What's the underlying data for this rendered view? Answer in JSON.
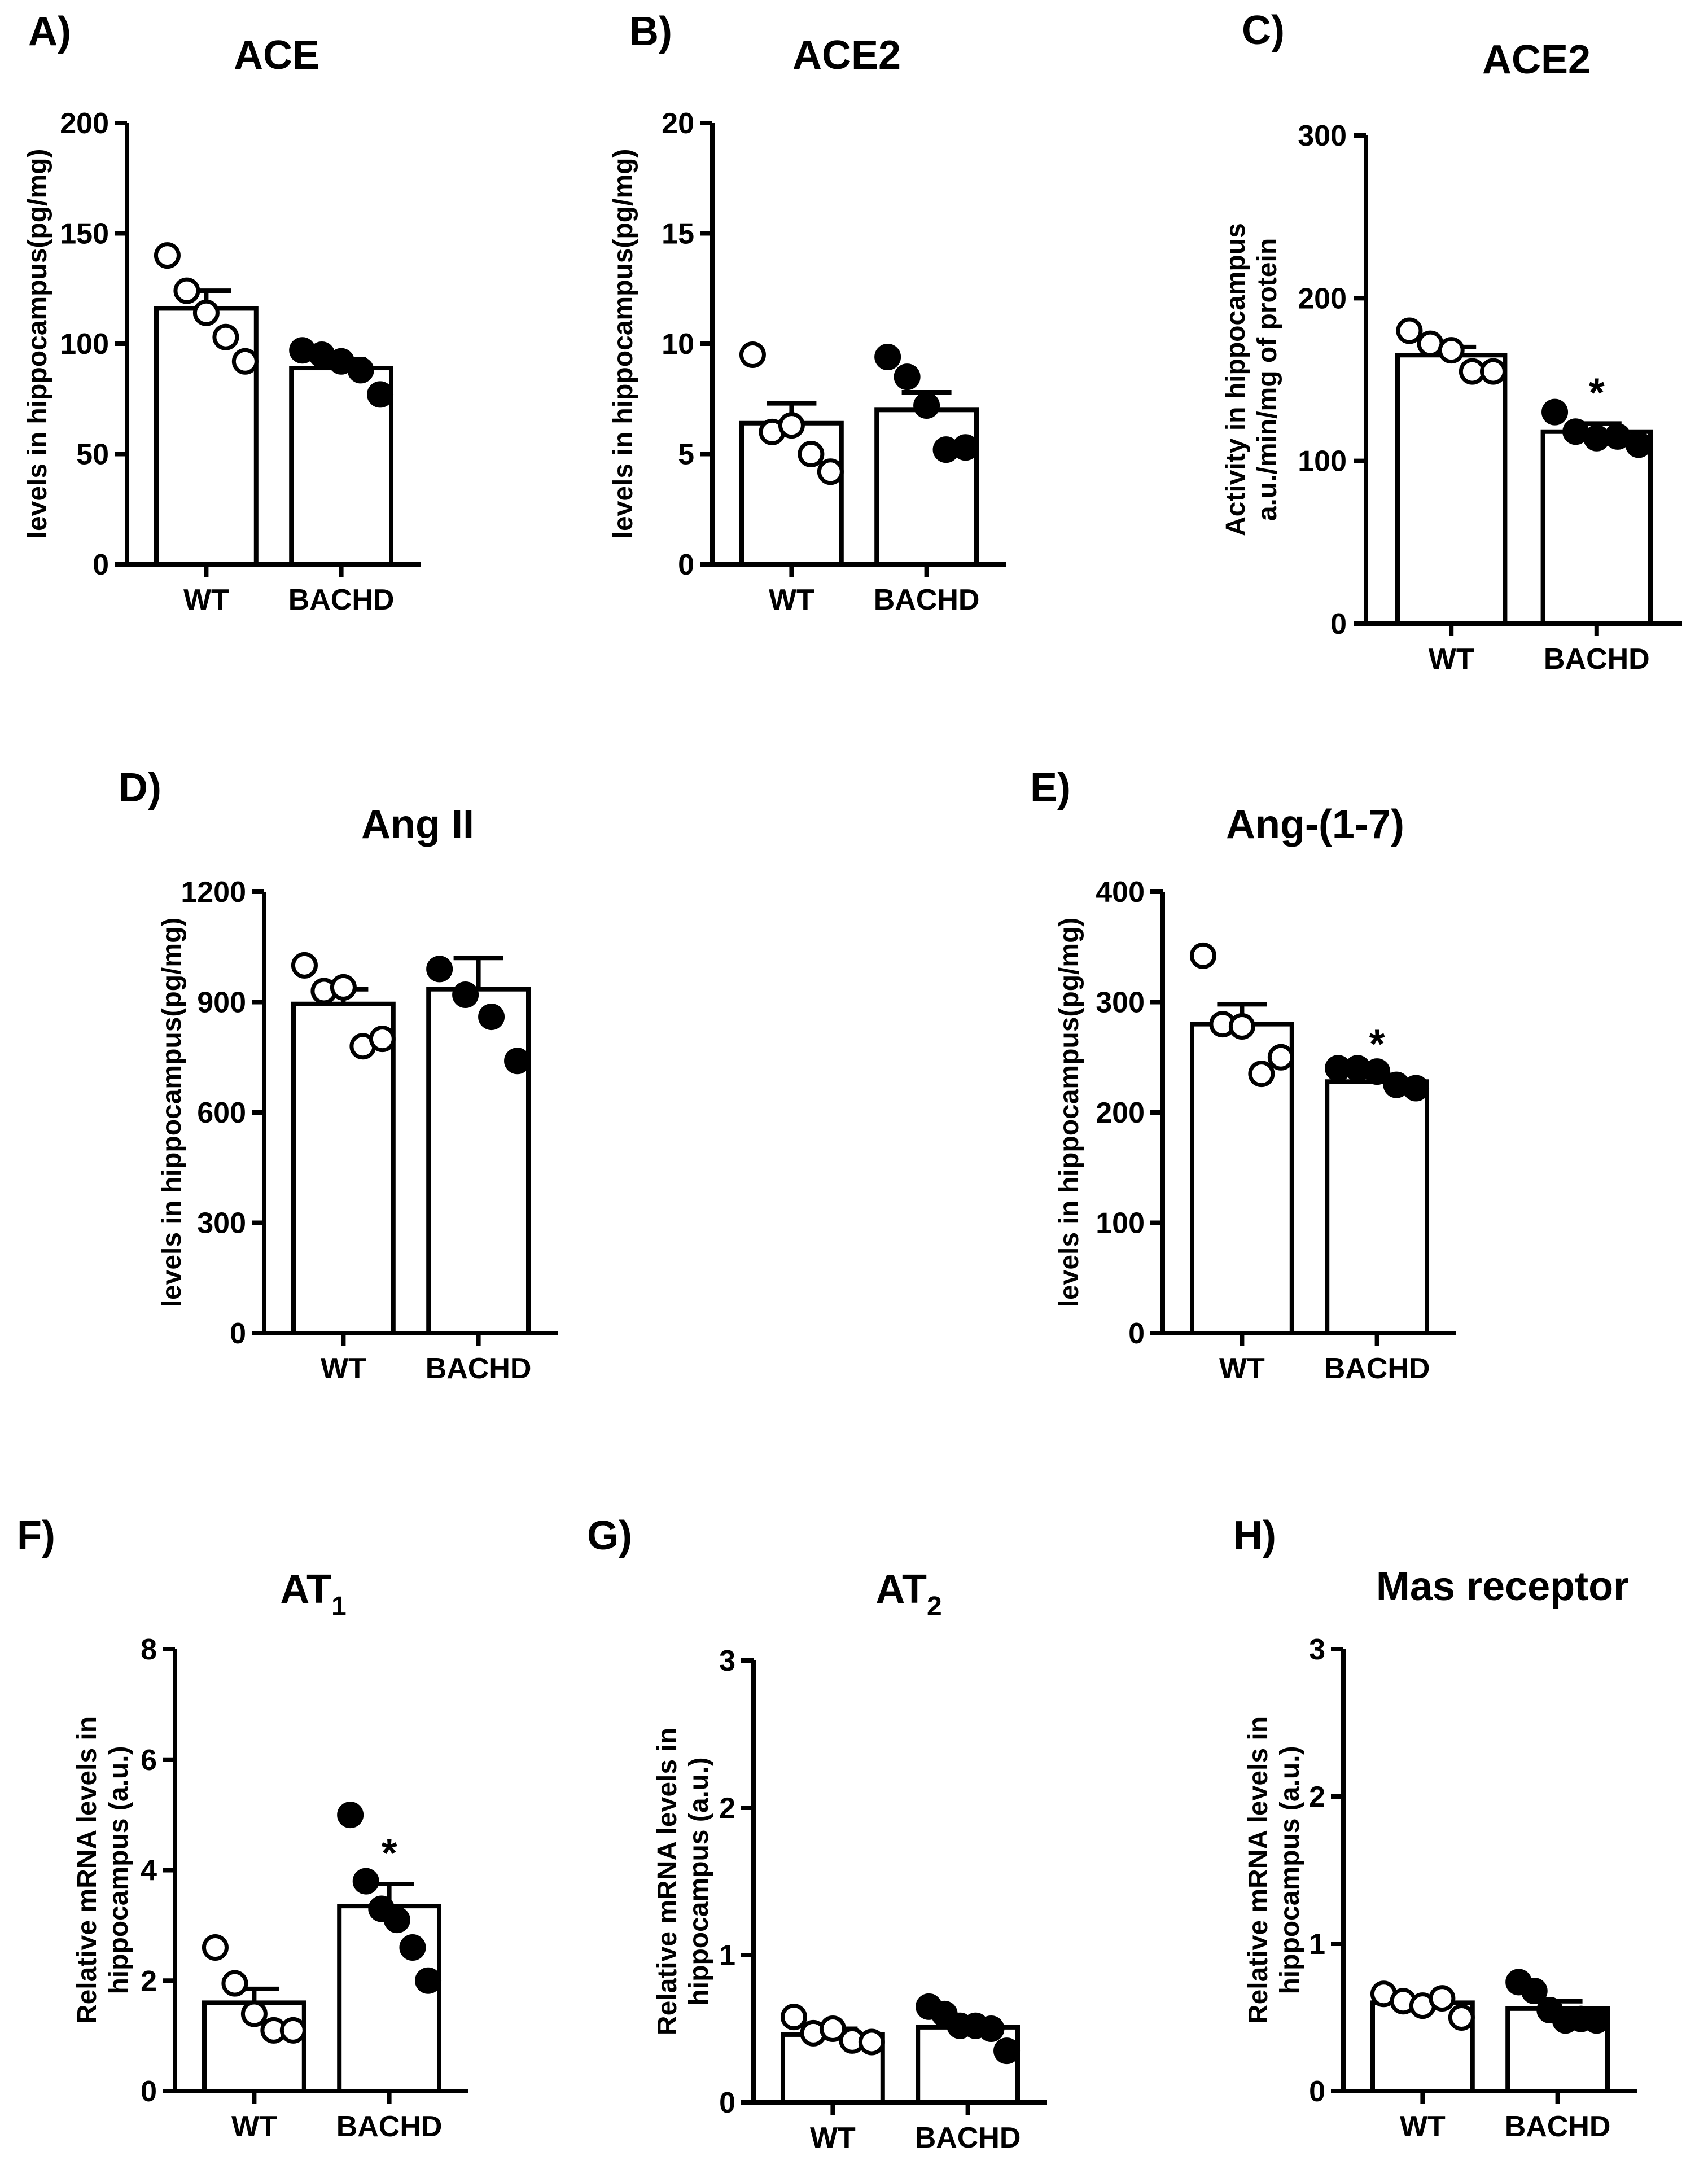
{
  "figure": {
    "background": "#ffffff",
    "ink": "#000000"
  },
  "chart_data": [
    {
      "panel": "A)",
      "type": "bar",
      "title": "ACE",
      "ylabel": [
        "levels in hippocampus(pg/mg)"
      ],
      "categories": [
        "WT",
        "BACHD"
      ],
      "ylim": [
        0,
        200
      ],
      "yticks": [
        0,
        50,
        100,
        150,
        200
      ],
      "means": [
        116,
        89
      ],
      "sem": [
        8,
        4
      ],
      "points": [
        [
          140,
          124,
          114,
          103,
          92
        ],
        [
          97,
          95,
          92,
          88,
          77
        ]
      ],
      "marker_fill": [
        "#ffffff",
        "#000000"
      ],
      "significance": [
        "",
        ""
      ]
    },
    {
      "panel": "B)",
      "type": "bar",
      "title": "ACE2",
      "ylabel": [
        "levels in hippocampus(pg/mg)"
      ],
      "categories": [
        "WT",
        "BACHD"
      ],
      "ylim": [
        0,
        20
      ],
      "yticks": [
        0,
        5,
        10,
        15,
        20
      ],
      "means": [
        6.4,
        7.0
      ],
      "sem": [
        0.9,
        0.8
      ],
      "points": [
        [
          9.5,
          6.0,
          6.3,
          5.0,
          4.2
        ],
        [
          9.4,
          8.5,
          7.2,
          5.2,
          5.3
        ]
      ],
      "marker_fill": [
        "#ffffff",
        "#000000"
      ],
      "significance": [
        "",
        ""
      ]
    },
    {
      "panel": "C)",
      "type": "bar",
      "title": "ACE2",
      "ylabel": [
        "Activity in hippocampus",
        "a.u./min/mg of protein"
      ],
      "categories": [
        "WT",
        "BACHD"
      ],
      "ylim": [
        0,
        300
      ],
      "yticks": [
        0,
        100,
        200,
        300
      ],
      "means": [
        165,
        118
      ],
      "sem": [
        5,
        5
      ],
      "points": [
        [
          180,
          172,
          168,
          155,
          155
        ],
        [
          130,
          118,
          114,
          115,
          110
        ]
      ],
      "marker_fill": [
        "#ffffff",
        "#000000"
      ],
      "significance": [
        "",
        "*"
      ]
    },
    {
      "panel": "D)",
      "type": "bar",
      "title": "Ang II",
      "ylabel": [
        "levels in hippocampus(pg/mg)"
      ],
      "categories": [
        "WT",
        "BACHD"
      ],
      "ylim": [
        0,
        1200
      ],
      "yticks": [
        0,
        300,
        600,
        900,
        1200
      ],
      "means": [
        895,
        935
      ],
      "sem": [
        40,
        85
      ],
      "points": [
        [
          1000,
          930,
          940,
          780,
          800
        ],
        [
          990,
          920,
          860,
          740
        ]
      ],
      "marker_fill": [
        "#ffffff",
        "#000000"
      ],
      "significance": [
        "",
        ""
      ]
    },
    {
      "panel": "E)",
      "type": "bar",
      "title": "Ang-(1-7)",
      "ylabel": [
        "levels in hippocampus(pg/mg)"
      ],
      "categories": [
        "WT",
        "BACHD"
      ],
      "ylim": [
        0,
        400
      ],
      "yticks": [
        0,
        100,
        200,
        300,
        400
      ],
      "means": [
        280,
        228
      ],
      "sem": [
        18,
        6
      ],
      "points": [
        [
          342,
          280,
          278,
          235,
          250
        ],
        [
          240,
          240,
          237,
          225,
          222
        ]
      ],
      "marker_fill": [
        "#ffffff",
        "#000000"
      ],
      "significance": [
        "",
        "*"
      ]
    },
    {
      "panel": "F)",
      "type": "bar",
      "title": "AT",
      "title_sub": "1",
      "ylabel": [
        "Relative mRNA levels in",
        "hippocampus (a.u.)"
      ],
      "categories": [
        "WT",
        "BACHD"
      ],
      "ylim": [
        0,
        8
      ],
      "yticks": [
        0,
        2,
        4,
        6,
        8
      ],
      "means": [
        1.6,
        3.35
      ],
      "sem": [
        0.25,
        0.4
      ],
      "points": [
        [
          2.6,
          1.95,
          1.4,
          1.1,
          1.1
        ],
        [
          5.0,
          3.8,
          3.3,
          3.1,
          2.6,
          2.0
        ]
      ],
      "marker_fill": [
        "#ffffff",
        "#000000"
      ],
      "significance": [
        "",
        "*"
      ]
    },
    {
      "panel": "G)",
      "type": "bar",
      "title": "AT",
      "title_sub": "2",
      "ylabel": [
        "Relative mRNA levels in",
        "hippocampus (a.u.)"
      ],
      "categories": [
        "WT",
        "BACHD"
      ],
      "ylim": [
        0,
        3
      ],
      "yticks": [
        0,
        1,
        2,
        3
      ],
      "means": [
        0.46,
        0.51
      ],
      "sem": [
        0.04,
        0.04
      ],
      "points": [
        [
          0.58,
          0.47,
          0.5,
          0.42,
          0.41
        ],
        [
          0.65,
          0.6,
          0.52,
          0.52,
          0.5,
          0.35
        ]
      ],
      "marker_fill": [
        "#ffffff",
        "#000000"
      ],
      "significance": [
        "",
        ""
      ]
    },
    {
      "panel": "H)",
      "type": "bar",
      "title": "Mas receptor",
      "ylabel": [
        "Relative mRNA levels in",
        "hippocampus (a.u.)"
      ],
      "categories": [
        "WT",
        "BACHD"
      ],
      "ylim": [
        0,
        3
      ],
      "yticks": [
        0,
        1,
        2,
        3
      ],
      "means": [
        0.6,
        0.56
      ],
      "sem": [
        0.03,
        0.05
      ],
      "points": [
        [
          0.66,
          0.61,
          0.58,
          0.63,
          0.5
        ],
        [
          0.74,
          0.68,
          0.55,
          0.48,
          0.49,
          0.48
        ]
      ],
      "marker_fill": [
        "#ffffff",
        "#000000"
      ],
      "significance": [
        "",
        ""
      ]
    }
  ]
}
